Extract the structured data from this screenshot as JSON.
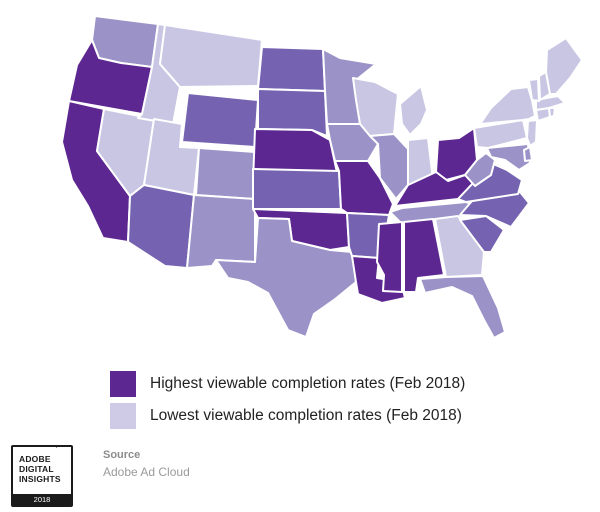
{
  "colors": {
    "highest": "#5d2791",
    "high": "#7563b1",
    "mid": "#9b93c7",
    "low": "#c9c6e3",
    "border": "#ffffff"
  },
  "legend": {
    "items": [
      {
        "label": "Highest viewable completion rates (Feb 2018)",
        "color": "#5d2791"
      },
      {
        "label": "Lowest viewable completion rates (Feb 2018)",
        "color": "#cfcbe6"
      }
    ]
  },
  "badge": {
    "lines": [
      "ADOBE",
      "DIGITAL",
      "INSIGHTS"
    ],
    "year": "2018"
  },
  "source": {
    "title": "Source",
    "value": "Adobe Ad Cloud"
  },
  "map": {
    "states": [
      {
        "abbr": "WA",
        "level": "mid"
      },
      {
        "abbr": "OR",
        "level": "highest"
      },
      {
        "abbr": "CA",
        "level": "highest"
      },
      {
        "abbr": "NV",
        "level": "low"
      },
      {
        "abbr": "ID",
        "level": "low"
      },
      {
        "abbr": "MT",
        "level": "low"
      },
      {
        "abbr": "WY",
        "level": "high"
      },
      {
        "abbr": "UT",
        "level": "low"
      },
      {
        "abbr": "AZ",
        "level": "high"
      },
      {
        "abbr": "CO",
        "level": "mid"
      },
      {
        "abbr": "NM",
        "level": "mid"
      },
      {
        "abbr": "ND",
        "level": "high"
      },
      {
        "abbr": "SD",
        "level": "high"
      },
      {
        "abbr": "NE",
        "level": "highest"
      },
      {
        "abbr": "KS",
        "level": "high"
      },
      {
        "abbr": "OK",
        "level": "highest"
      },
      {
        "abbr": "TX",
        "level": "mid"
      },
      {
        "abbr": "MN",
        "level": "mid"
      },
      {
        "abbr": "IA",
        "level": "mid"
      },
      {
        "abbr": "MO",
        "level": "highest"
      },
      {
        "abbr": "AR",
        "level": "high"
      },
      {
        "abbr": "LA",
        "level": "highest"
      },
      {
        "abbr": "WI",
        "level": "low"
      },
      {
        "abbr": "IL",
        "level": "mid"
      },
      {
        "abbr": "MI",
        "level": "low"
      },
      {
        "abbr": "IN",
        "level": "low"
      },
      {
        "abbr": "OH",
        "level": "highest"
      },
      {
        "abbr": "KY",
        "level": "highest"
      },
      {
        "abbr": "TN",
        "level": "mid"
      },
      {
        "abbr": "MS",
        "level": "highest"
      },
      {
        "abbr": "AL",
        "level": "highest"
      },
      {
        "abbr": "GA",
        "level": "low"
      },
      {
        "abbr": "FL",
        "level": "mid"
      },
      {
        "abbr": "SC",
        "level": "high"
      },
      {
        "abbr": "NC",
        "level": "high"
      },
      {
        "abbr": "VA",
        "level": "high"
      },
      {
        "abbr": "WV",
        "level": "mid"
      },
      {
        "abbr": "MD",
        "level": "mid"
      },
      {
        "abbr": "DE",
        "level": "mid"
      },
      {
        "abbr": "PA",
        "level": "low"
      },
      {
        "abbr": "NJ",
        "level": "low"
      },
      {
        "abbr": "NY",
        "level": "low"
      },
      {
        "abbr": "CT",
        "level": "low"
      },
      {
        "abbr": "RI",
        "level": "low"
      },
      {
        "abbr": "MA",
        "level": "low"
      },
      {
        "abbr": "VT",
        "level": "low"
      },
      {
        "abbr": "NH",
        "level": "low"
      },
      {
        "abbr": "ME",
        "level": "low"
      }
    ]
  }
}
